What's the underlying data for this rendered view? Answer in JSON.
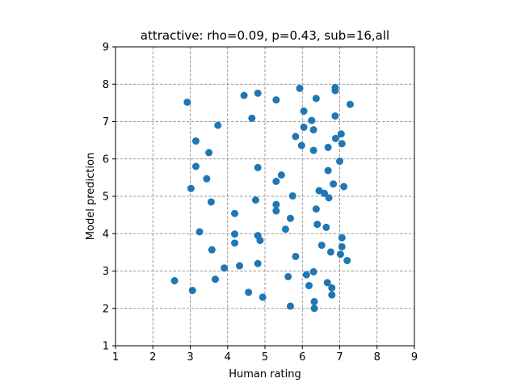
{
  "chart_data": {
    "type": "scatter",
    "title": "attractive: rho=0.09, p=0.43, sub=16,all",
    "xlabel": "Human rating",
    "ylabel": "Model prediction",
    "xlim": [
      1,
      9
    ],
    "ylim": [
      1,
      9
    ],
    "xticks": [
      "1",
      "2",
      "3",
      "4",
      "5",
      "6",
      "7",
      "8",
      "9"
    ],
    "yticks": [
      "1",
      "2",
      "3",
      "4",
      "5",
      "6",
      "7",
      "8",
      "9"
    ],
    "grid": true,
    "grid_style": "dashed",
    "legend": "none",
    "marker_color": "#1f77b4",
    "series": [
      {
        "points": [
          [
            2.58,
            2.74
          ],
          [
            2.92,
            7.52
          ],
          [
            3.02,
            5.21
          ],
          [
            3.06,
            2.48
          ],
          [
            3.15,
            6.48
          ],
          [
            3.15,
            5.8
          ],
          [
            3.25,
            4.05
          ],
          [
            3.44,
            5.47
          ],
          [
            3.5,
            6.17
          ],
          [
            3.56,
            4.85
          ],
          [
            3.58,
            3.57
          ],
          [
            3.67,
            2.78
          ],
          [
            3.74,
            6.9
          ],
          [
            3.91,
            3.08
          ],
          [
            4.19,
            4.54
          ],
          [
            4.19,
            3.99
          ],
          [
            4.19,
            3.75
          ],
          [
            4.32,
            3.14
          ],
          [
            4.44,
            7.7
          ],
          [
            4.56,
            2.43
          ],
          [
            4.65,
            7.09
          ],
          [
            4.75,
            4.9
          ],
          [
            4.81,
            7.76
          ],
          [
            4.81,
            5.77
          ],
          [
            4.81,
            3.95
          ],
          [
            4.81,
            3.2
          ],
          [
            4.87,
            3.82
          ],
          [
            4.94,
            2.3
          ],
          [
            5.3,
            7.58
          ],
          [
            5.3,
            5.4
          ],
          [
            5.3,
            4.78
          ],
          [
            5.3,
            4.61
          ],
          [
            5.44,
            5.57
          ],
          [
            5.55,
            4.12
          ],
          [
            5.62,
            2.85
          ],
          [
            5.68,
            2.06
          ],
          [
            5.68,
            4.41
          ],
          [
            5.74,
            5.01
          ],
          [
            5.82,
            3.39
          ],
          [
            5.82,
            6.6
          ],
          [
            5.93,
            7.89
          ],
          [
            5.98,
            6.36
          ],
          [
            6.04,
            6.85
          ],
          [
            6.04,
            7.28
          ],
          [
            6.11,
            2.9
          ],
          [
            6.18,
            2.61
          ],
          [
            6.25,
            7.03
          ],
          [
            6.3,
            6.78
          ],
          [
            6.3,
            6.23
          ],
          [
            6.3,
            2.98
          ],
          [
            6.32,
            2.18
          ],
          [
            6.32,
            2.0
          ],
          [
            6.37,
            7.62
          ],
          [
            6.37,
            4.66
          ],
          [
            6.4,
            4.25
          ],
          [
            6.45,
            5.15
          ],
          [
            6.52,
            3.69
          ],
          [
            6.59,
            5.08
          ],
          [
            6.64,
            4.17
          ],
          [
            6.67,
            2.69
          ],
          [
            6.69,
            6.31
          ],
          [
            6.69,
            5.69
          ],
          [
            6.71,
            4.96
          ],
          [
            6.76,
            3.51
          ],
          [
            6.79,
            2.36
          ],
          [
            6.79,
            2.55
          ],
          [
            6.83,
            5.33
          ],
          [
            6.88,
            7.91
          ],
          [
            6.88,
            7.83
          ],
          [
            6.88,
            7.15
          ],
          [
            6.89,
            6.55
          ],
          [
            7.0,
            5.94
          ],
          [
            7.02,
            3.45
          ],
          [
            7.04,
            6.67
          ],
          [
            7.06,
            6.41
          ],
          [
            7.06,
            3.89
          ],
          [
            7.06,
            3.65
          ],
          [
            7.11,
            5.26
          ],
          [
            7.2,
            3.28
          ],
          [
            7.28,
            7.46
          ]
        ]
      }
    ]
  }
}
